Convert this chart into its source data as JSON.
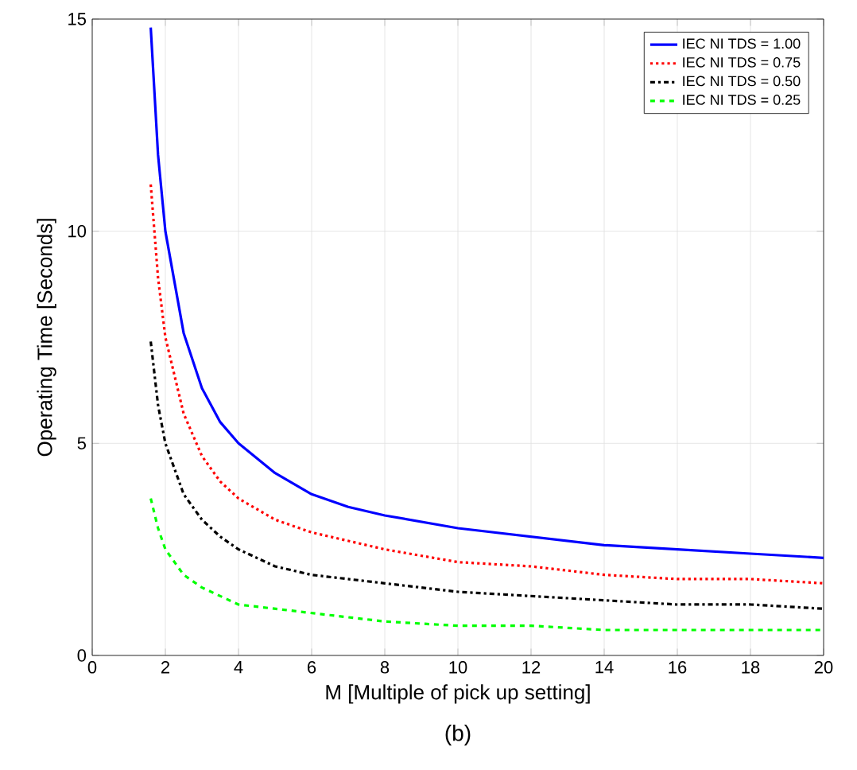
{
  "chart_data": {
    "type": "line",
    "xlabel": "M [Multiple of pick up setting]",
    "ylabel": "Operating Time [Seconds]",
    "x": [
      1.6,
      1.8,
      2,
      2.5,
      3,
      3.5,
      4,
      5,
      6,
      7,
      8,
      10,
      12,
      14,
      16,
      18,
      20
    ],
    "series": [
      {
        "name": "IEC NI TDS = 1.00",
        "color": "#0000ff",
        "line_style": "solid",
        "values": [
          14.8,
          11.8,
          10.0,
          7.6,
          6.3,
          5.5,
          5.0,
          4.3,
          3.8,
          3.5,
          3.3,
          3.0,
          2.8,
          2.6,
          2.5,
          2.4,
          2.3
        ]
      },
      {
        "name": "IEC NI TDS = 0.75",
        "color": "#ff0000",
        "line_style": "dotted",
        "values": [
          11.1,
          8.9,
          7.5,
          5.7,
          4.7,
          4.1,
          3.7,
          3.2,
          2.9,
          2.7,
          2.5,
          2.2,
          2.1,
          1.9,
          1.8,
          1.8,
          1.7
        ]
      },
      {
        "name": "IEC NI TDS = 0.50",
        "color": "#000000",
        "line_style": "dashdot",
        "values": [
          7.4,
          5.9,
          5.0,
          3.8,
          3.2,
          2.8,
          2.5,
          2.1,
          1.9,
          1.8,
          1.7,
          1.5,
          1.4,
          1.3,
          1.2,
          1.2,
          1.1
        ]
      },
      {
        "name": "IEC NI TDS = 0.25",
        "color": "#00ff00",
        "line_style": "dashed",
        "values": [
          3.7,
          3.0,
          2.5,
          1.9,
          1.6,
          1.4,
          1.2,
          1.1,
          1.0,
          0.9,
          0.8,
          0.7,
          0.7,
          0.6,
          0.6,
          0.6,
          0.6
        ]
      }
    ],
    "xlim": [
      0,
      20
    ],
    "xticks": [
      0,
      2,
      4,
      6,
      8,
      10,
      12,
      14,
      16,
      18,
      20
    ],
    "ylim": [
      0,
      15
    ],
    "yticks": [
      0,
      5,
      10,
      15
    ],
    "grid": true,
    "legend": "top right",
    "marker": "none",
    "annotations": [
      "(b)"
    ]
  }
}
